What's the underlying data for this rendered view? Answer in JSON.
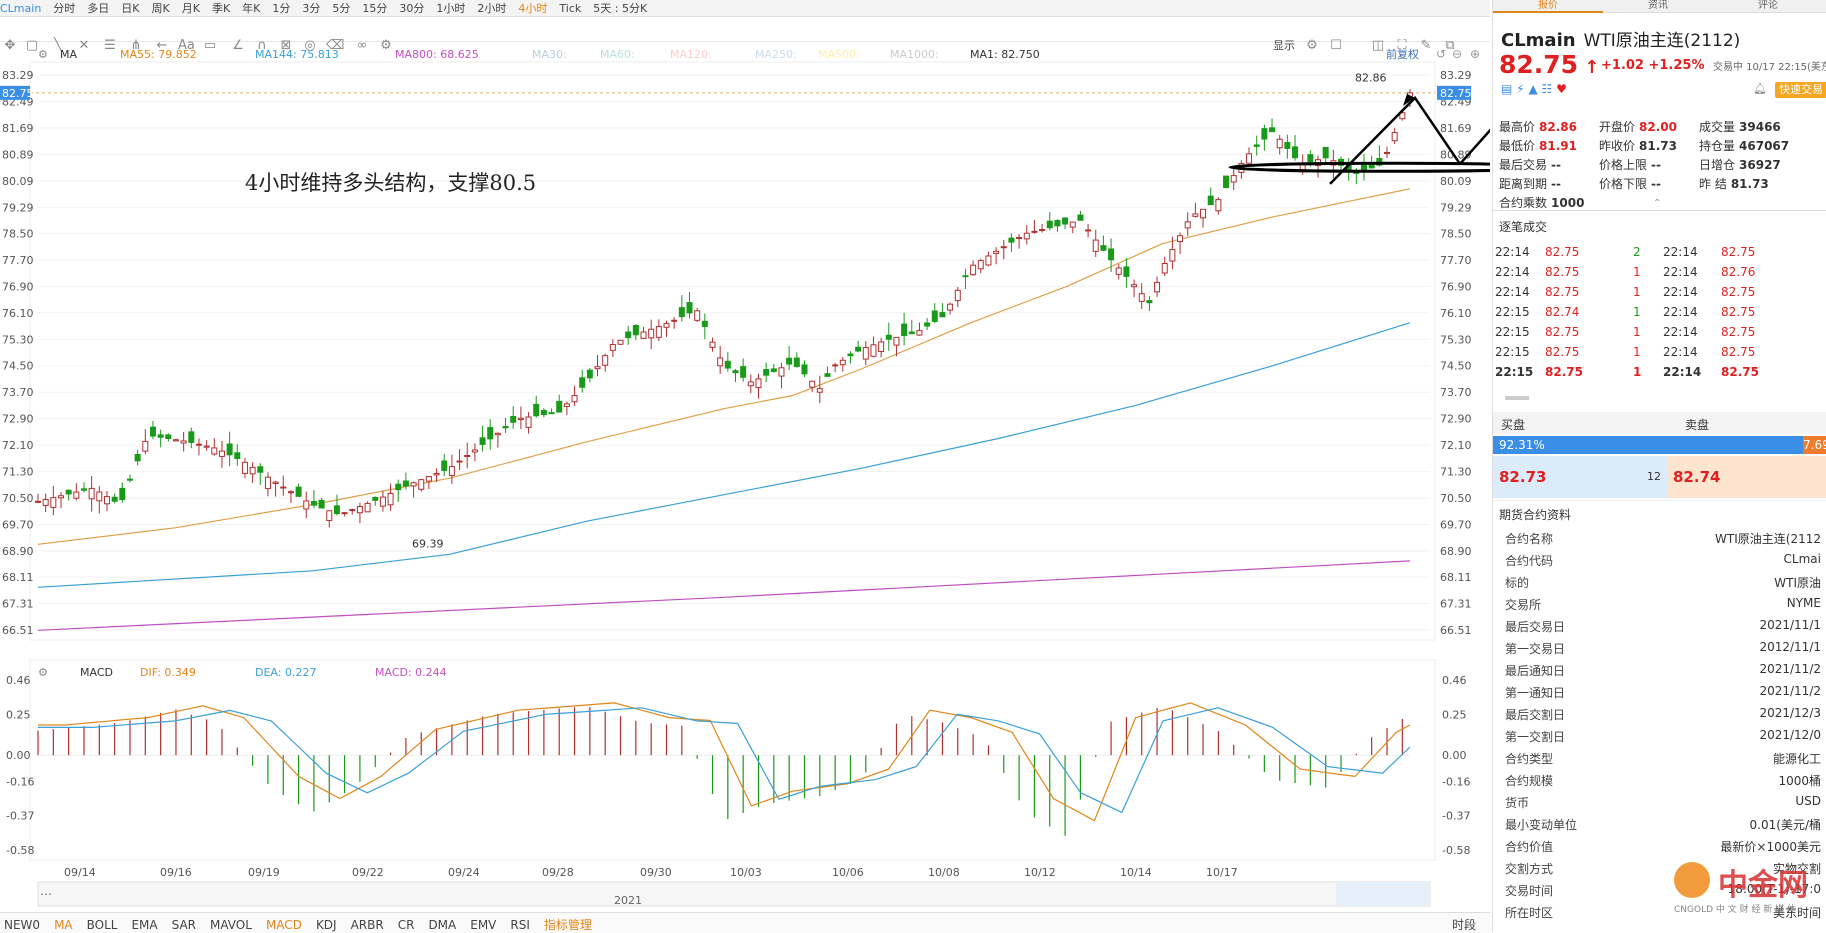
{
  "toolbar": {
    "symbol": "CLmain",
    "periods": [
      "分时",
      "多日",
      "日K",
      "周K",
      "月K",
      "季K",
      "年K",
      "1分",
      "3分",
      "5分",
      "15分",
      "30分",
      "1小时",
      "2小时",
      "4小时",
      "Tick",
      "5天 : 5分K"
    ],
    "active_period": "4小时",
    "display_label": "显示"
  },
  "indicator_bar": {
    "ma_name": "MA",
    "ma_items": [
      {
        "label": "MA55: 79.852",
        "color": "#e0861a"
      },
      {
        "label": "MA144: 75.813",
        "color": "#3aa0d8"
      },
      {
        "label": "MA800: 68.625",
        "color": "#c050c0"
      },
      {
        "label": "MA30:",
        "color": "#bcd"
      },
      {
        "label": "MA60:",
        "color": "#bdd"
      },
      {
        "label": "MA120:",
        "color": "#fcc"
      },
      {
        "label": "MA250:",
        "color": "#cde"
      },
      {
        "label": "MA500:",
        "color": "#fea"
      },
      {
        "label": "MA1000:",
        "color": "#ccc"
      },
      {
        "label": "MA1: 82.750",
        "color": "#333"
      }
    ],
    "adjust_label": "前复权"
  },
  "price_axis": [
    "83.29",
    "82.49",
    "81.69",
    "80.89",
    "80.09",
    "79.29",
    "78.50",
    "77.70",
    "76.90",
    "76.10",
    "75.30",
    "74.50",
    "73.70",
    "72.90",
    "72.10",
    "71.30",
    "70.50",
    "69.70",
    "68.90",
    "68.11",
    "67.31",
    "66.51"
  ],
  "current_price_tag": "82.75",
  "annotation_text": "4小时维持多头结构，支撑80.5",
  "high_label": "82.86",
  "low_label": "69.39",
  "macd_bar": {
    "name": "MACD",
    "items": [
      {
        "label": "DIF: 0.349",
        "color": "#e0861a"
      },
      {
        "label": "DEA: 0.227",
        "color": "#3aa0d8"
      },
      {
        "label": "MACD: 0.244",
        "color": "#c050c0"
      }
    ]
  },
  "macd_axis": [
    "0.46",
    "0.25",
    "0.00",
    "-0.16",
    "-0.37",
    "-0.58"
  ],
  "date_axis": [
    "09/14",
    "09/16",
    "09/19",
    "09/22",
    "09/24",
    "09/28",
    "09/30",
    "10/03",
    "10/06",
    "10/08",
    "10/12",
    "10/14",
    "10/17"
  ],
  "overview_year": "2021",
  "bottom_tabs": [
    "NEW0",
    "MA",
    "BOLL",
    "EMA",
    "SAR",
    "MAVOL",
    "MACD",
    "KDJ",
    "ARBR",
    "CR",
    "DMA",
    "EMV",
    "RSI",
    "指标管理"
  ],
  "bottom_right": "时段",
  "chart_data": {
    "type": "candlestick",
    "ylim": [
      66.51,
      83.29
    ],
    "ma_lines": [
      {
        "name": "MA55",
        "color": "#e0a04a",
        "points": [
          [
            0,
            69.1
          ],
          [
            0.1,
            69.6
          ],
          [
            0.2,
            70.3
          ],
          [
            0.3,
            71.1
          ],
          [
            0.4,
            72.2
          ],
          [
            0.5,
            73.2
          ],
          [
            0.55,
            73.6
          ],
          [
            0.6,
            74.4
          ],
          [
            0.68,
            75.8
          ],
          [
            0.75,
            76.9
          ],
          [
            0.82,
            78.2
          ],
          [
            0.9,
            79.0
          ],
          [
            1.0,
            79.85
          ]
        ]
      },
      {
        "name": "MA144",
        "color": "#3aa0d8",
        "points": [
          [
            0,
            67.8
          ],
          [
            0.2,
            68.3
          ],
          [
            0.3,
            68.8
          ],
          [
            0.4,
            69.8
          ],
          [
            0.5,
            70.6
          ],
          [
            0.6,
            71.4
          ],
          [
            0.7,
            72.3
          ],
          [
            0.8,
            73.3
          ],
          [
            0.9,
            74.5
          ],
          [
            1.0,
            75.8
          ]
        ]
      },
      {
        "name": "MA800",
        "color": "#c050c0",
        "points": [
          [
            0,
            66.5
          ],
          [
            0.5,
            67.5
          ],
          [
            1.0,
            68.6
          ]
        ]
      }
    ]
  },
  "panel": {
    "tabs": [
      "报价",
      "资讯",
      "评论"
    ],
    "symbol": "CLmain",
    "name": "WTI原油主连(2112)",
    "price": "82.75",
    "change": "+1.02 +1.25%",
    "status": "交易中 10/17 22:15(美东",
    "quick_trade": "快速交易",
    "quotes": [
      [
        [
          "最高价",
          "82.86",
          "red"
        ],
        [
          "开盘价",
          "82.00",
          "red"
        ],
        [
          "成交量",
          "39466",
          ""
        ]
      ],
      [
        [
          "最低价",
          "81.91",
          "red"
        ],
        [
          "昨收价",
          "81.73",
          ""
        ],
        [
          "持仓量",
          "467067",
          ""
        ]
      ],
      [
        [
          "最后交易",
          "--",
          ""
        ],
        [
          "价格上限",
          "--",
          ""
        ],
        [
          "日增仓",
          "36927",
          ""
        ]
      ],
      [
        [
          "距离到期",
          "--",
          ""
        ],
        [
          "价格下限",
          "--",
          ""
        ],
        [
          "昨  结",
          "81.73",
          ""
        ]
      ],
      [
        [
          "合约乘数",
          "1000",
          ""
        ]
      ]
    ],
    "ticks_title": "逐笔成交",
    "ticks": [
      [
        "22:14",
        "82.75",
        "2",
        "22:14",
        "82.75"
      ],
      [
        "22:14",
        "82.75",
        "1",
        "22:14",
        "82.76"
      ],
      [
        "22:14",
        "82.75",
        "1",
        "22:14",
        "82.75"
      ],
      [
        "22:15",
        "82.74",
        "1",
        "22:14",
        "82.75"
      ],
      [
        "22:15",
        "82.75",
        "1",
        "22:14",
        "82.75"
      ],
      [
        "22:15",
        "82.75",
        "1",
        "22:14",
        "82.75"
      ],
      [
        "22:15",
        "82.75",
        "1",
        "22:14",
        "82.75"
      ]
    ],
    "buy_label": "买盘",
    "sell_label": "卖盘",
    "buy_pct": "92.31%",
    "sell_pct": "7.69",
    "bid": "82.73",
    "bid_qty": "12",
    "ask": "82.74",
    "info_title": "期货合约资料",
    "info": [
      [
        "合约名称",
        "WTI原油主连(2112"
      ],
      [
        "合约代码",
        "CLmai"
      ],
      [
        "标的",
        "WTI原油"
      ],
      [
        "交易所",
        "NYME"
      ],
      [
        "最后交易日",
        "2021/11/1"
      ],
      [
        "第一交易日",
        "2012/11/1"
      ],
      [
        "最后通知日",
        "2021/11/2"
      ],
      [
        "第一通知日",
        "2021/11/2"
      ],
      [
        "最后交割日",
        "2021/12/3"
      ],
      [
        "第一交割日",
        "2021/12/0"
      ],
      [
        "合约类型",
        "能源化工"
      ],
      [
        "合约规模",
        "1000桶"
      ],
      [
        "货币",
        "USD"
      ],
      [
        "最小变动单位",
        "0.01(美元/桶"
      ],
      [
        "合约价值",
        "最新价×1000美元"
      ],
      [
        "交割方式",
        "实物交割"
      ],
      [
        "交易时间",
        "18:00(T-1)-17:0"
      ],
      [
        "所在时区",
        "美东时间"
      ]
    ],
    "logo_text": "中金网",
    "logo_sub": "CNGOLD 中 文 财 经 新 媒 体"
  }
}
